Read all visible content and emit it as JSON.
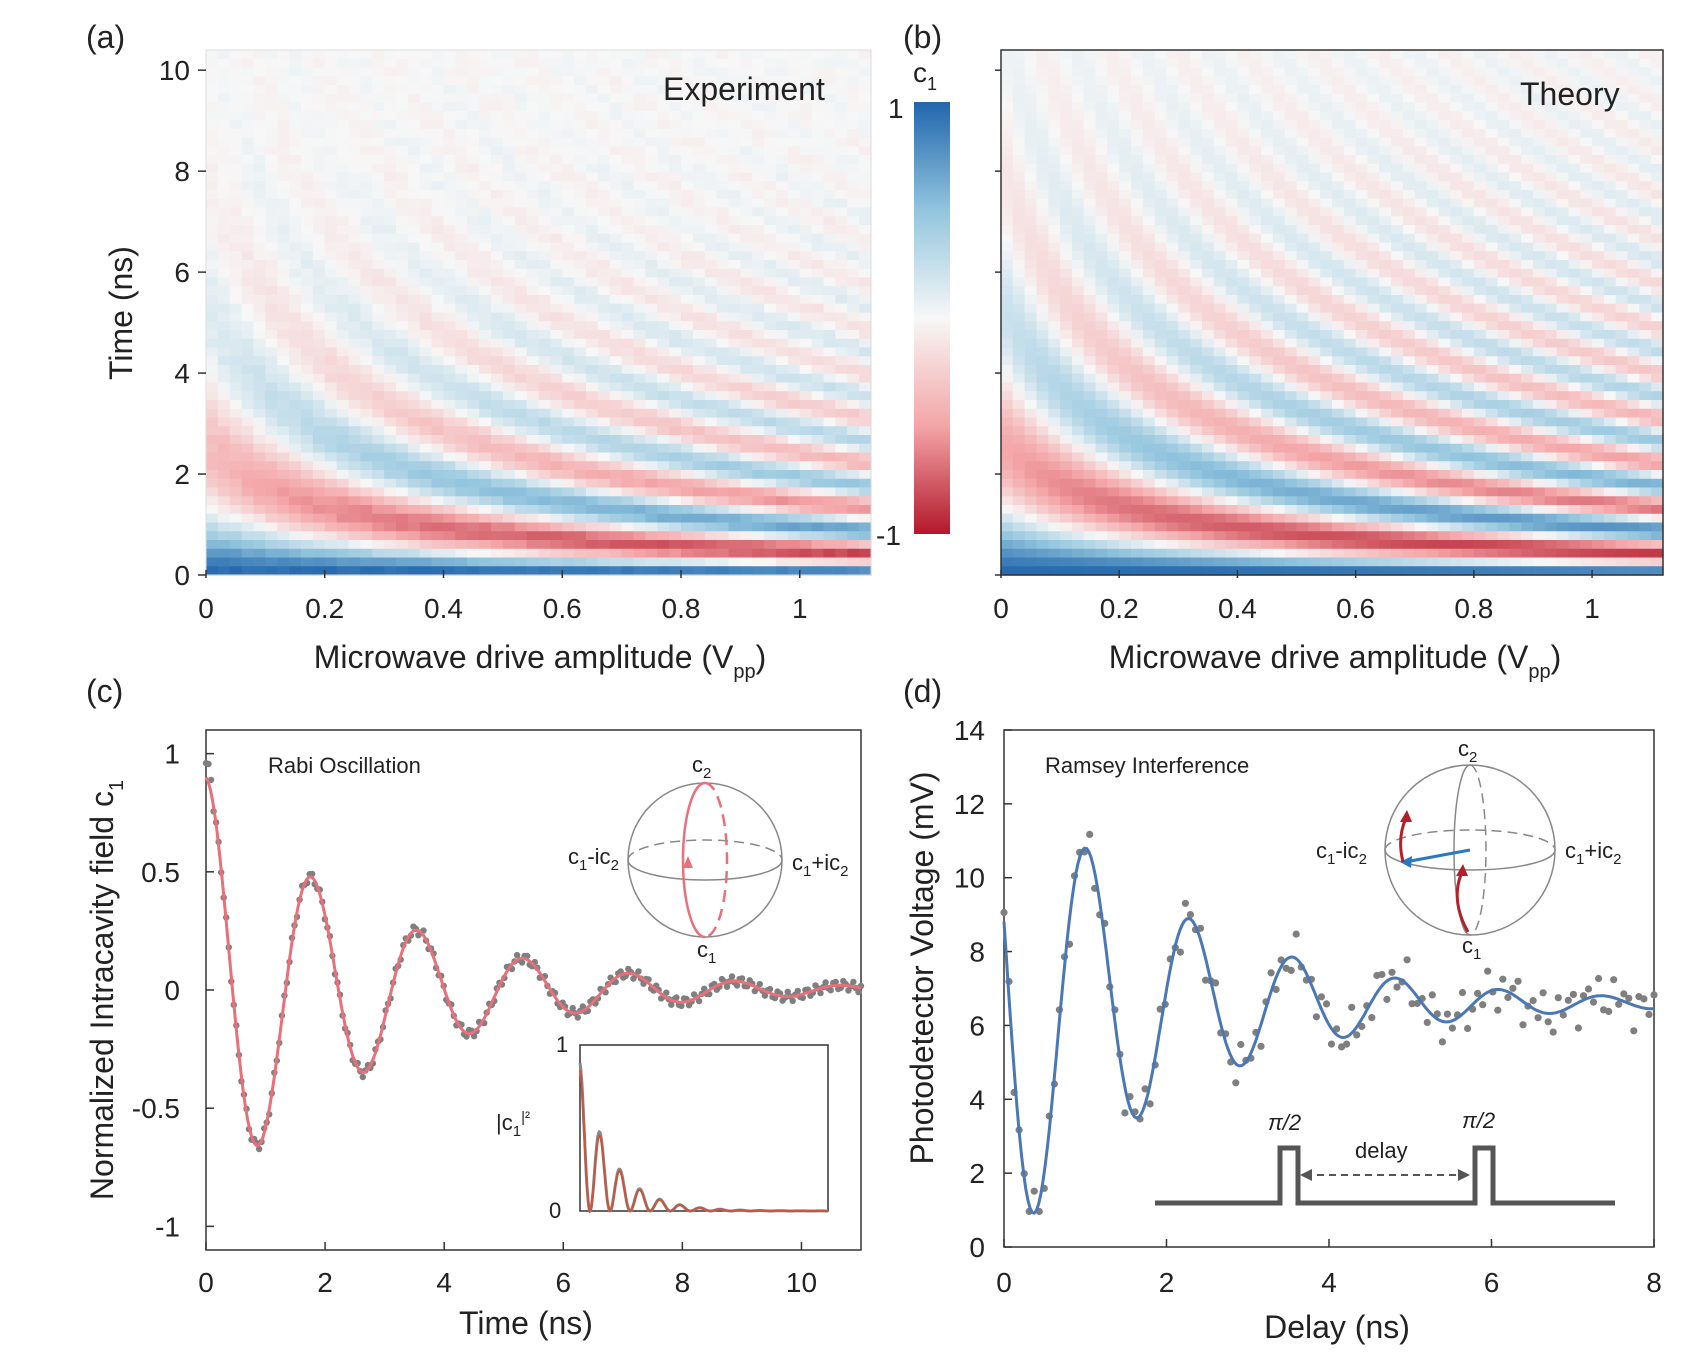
{
  "colors": {
    "blue": "#2b6cb0",
    "red": "#b3202a",
    "gray": "#7f7f7f",
    "pink": "#e8707b",
    "fitblue": "#4a78b4",
    "dark": "#555555"
  },
  "panel_a": {
    "label": "(a)",
    "legend": "Experiment",
    "chart_data": {
      "type": "heatmap",
      "title": "Experiment",
      "xlabel": "Microwave drive amplitude (V",
      "xlabel_sub": "pp",
      "xlabel_end": ")",
      "ylabel": "Time (ns)",
      "xlim": [
        0,
        1.12
      ],
      "ylim": [
        0,
        10.4
      ],
      "xticks": [
        "0",
        "0.2",
        "0.4",
        "0.6",
        "0.8",
        "1"
      ],
      "xtick_values": [
        0,
        0.2,
        0.4,
        0.6,
        0.8,
        1
      ],
      "yticks": [
        "0",
        "2",
        "4",
        "6",
        "8",
        "10"
      ],
      "ytick_values": [
        0,
        2,
        4,
        6,
        8,
        10
      ],
      "decay_ns": 2.5,
      "frequency_offset": 0.18,
      "frequency_slope": 0.85
    }
  },
  "panel_b": {
    "label": "(b)",
    "legend": "Theory",
    "chart_data": {
      "type": "heatmap",
      "title": "Theory",
      "xlabel": "Microwave drive amplitude (V",
      "xlabel_sub": "pp",
      "xlabel_end": ")",
      "xlim": [
        0,
        1.12
      ],
      "ylim": [
        0,
        10.4
      ],
      "xticks": [
        "0",
        "0.2",
        "0.4",
        "0.6",
        "0.8",
        "1"
      ],
      "xtick_values": [
        0,
        0.2,
        0.4,
        0.6,
        0.8,
        1
      ],
      "decay_ns": 3.5,
      "frequency_offset": 0.18,
      "frequency_slope": 0.85
    }
  },
  "colorbar": {
    "label": "c",
    "label_sub": "1",
    "max_label": "1",
    "min_label": "-1",
    "range": [
      -1,
      1
    ]
  },
  "panel_c": {
    "label": "(c)",
    "title": "Rabi Oscillation",
    "sphere": {
      "top": "c",
      "top_sub": "2",
      "bottom": "c",
      "bottom_sub": "1",
      "left": "c",
      "left_sub": "1",
      "left_mid": "-ic",
      "left_sub2": "2",
      "right": "c",
      "right_sub": "1",
      "right_mid": "+ic",
      "right_sub2": "2"
    },
    "chart_data": {
      "type": "line",
      "xlabel": "Time (ns)",
      "ylabel": "Normalized Intracavity field c",
      "ylabel_sub": "1",
      "xlim": [
        0,
        11
      ],
      "ylim": [
        -1.1,
        1.1
      ],
      "xticks": [
        "0",
        "2",
        "4",
        "6",
        "8",
        "10"
      ],
      "xtick_values": [
        0,
        2,
        4,
        6,
        8,
        10
      ],
      "yticks": [
        "-1",
        "-0.5",
        "0",
        "0.5",
        "1"
      ],
      "ytick_values": [
        -1,
        -0.5,
        0,
        0.5,
        1
      ],
      "model": {
        "amplitude": 0.9,
        "decay_ns": 2.8,
        "period_ns": 1.78,
        "phase": 0.0
      },
      "series": [
        {
          "name": "data",
          "style": "points",
          "x_end": 11,
          "n": 260
        },
        {
          "name": "fit",
          "style": "line",
          "x_end": 11,
          "n": 300
        }
      ],
      "inset": {
        "ylabel": "|c",
        "ylabel_sub": "1",
        "ylabel_end": "|²",
        "yticks": [
          "0",
          "1"
        ],
        "ytick_values": [
          0,
          1
        ],
        "xlim": [
          0,
          11
        ],
        "ylim": [
          0,
          1
        ]
      }
    }
  },
  "panel_d": {
    "label": "(d)",
    "title": "Ramsey Interference",
    "sphere": {
      "top": "c",
      "top_sub": "2",
      "bottom": "c",
      "bottom_sub": "1",
      "left": "c",
      "left_sub": "1",
      "left_mid": "-ic",
      "left_sub2": "2",
      "right": "c",
      "right_sub": "1",
      "right_mid": "+ic",
      "right_sub2": "2"
    },
    "pulse": {
      "pulse1": "π/2",
      "pulse2": "π/2",
      "delay": "delay"
    },
    "chart_data": {
      "type": "scatter",
      "xlabel": "Delay (ns)",
      "ylabel": "Photodetector Voltage (mV)",
      "xlim": [
        0,
        8
      ],
      "ylim": [
        0,
        14
      ],
      "xticks": [
        "0",
        "2",
        "4",
        "6",
        "8"
      ],
      "xtick_values": [
        0,
        2,
        4,
        6,
        8
      ],
      "yticks": [
        "0",
        "2",
        "4",
        "6",
        "8",
        "10",
        "12",
        "14"
      ],
      "ytick_values": [
        0,
        2,
        4,
        6,
        8,
        10,
        12,
        14
      ],
      "model": {
        "offset": 6.6,
        "amplitude": 6.8,
        "decay_ns": 2.1,
        "period_ns": 1.27,
        "phase": 1.24
      },
      "series": [
        {
          "name": "data",
          "style": "points",
          "x_end": 8,
          "n": 130
        },
        {
          "name": "fit",
          "style": "line",
          "x_end": 8,
          "n": 300
        }
      ]
    }
  }
}
